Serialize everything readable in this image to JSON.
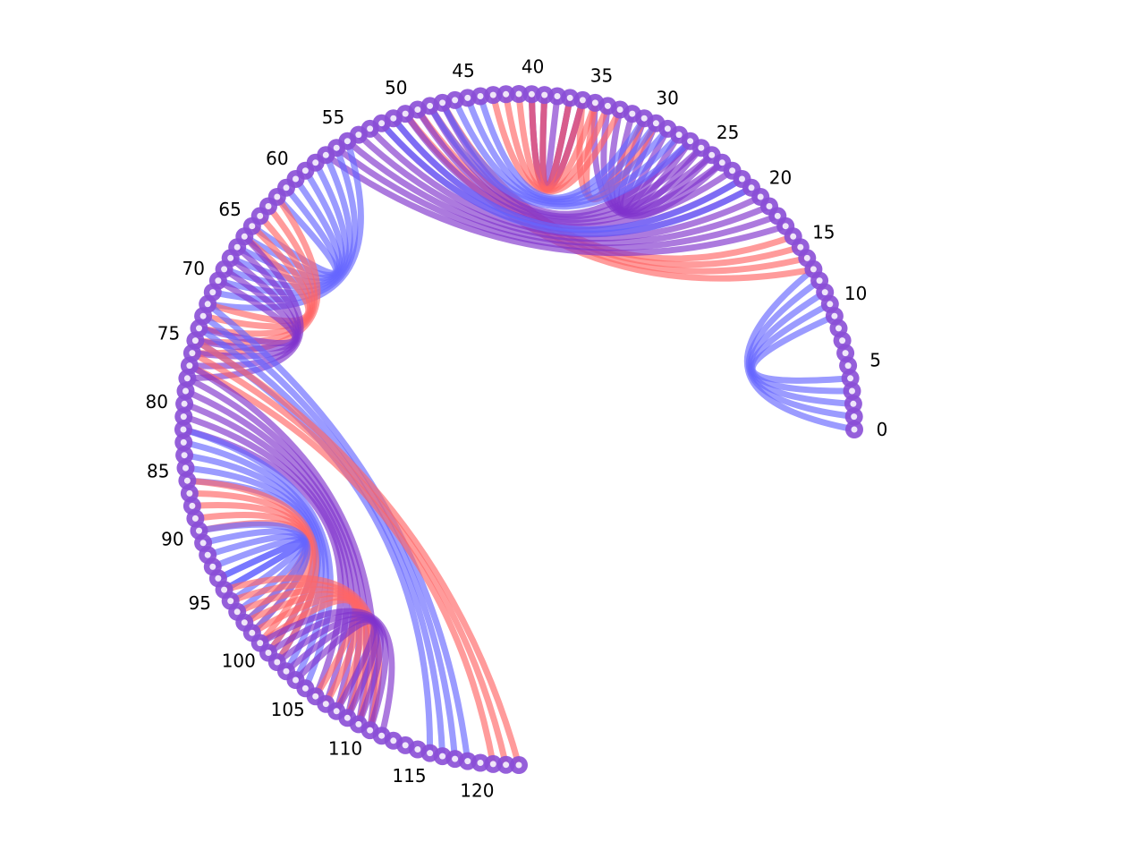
{
  "chart_data": {
    "type": "chord-arc",
    "title": "",
    "node_count": 124,
    "angular_span_degrees": 270,
    "tick_labels": [
      "0",
      "5",
      "10",
      "15",
      "20",
      "25",
      "30",
      "35",
      "40",
      "45",
      "50",
      "55",
      "60",
      "65",
      "70",
      "75",
      "80",
      "85",
      "90",
      "95",
      "100",
      "105",
      "110",
      "115",
      "120"
    ],
    "tick_label_step": 5,
    "colors": {
      "blue": "#6666ff",
      "red": "#ff6666",
      "purple": "#7f33cc",
      "node_ring": "#8a4ed6",
      "node_center": "#ffffff"
    },
    "links": [
      {
        "from": [
          0,
          4
        ],
        "to": [
          9,
          13
        ],
        "color": "blue"
      },
      {
        "from": [
          13,
          16
        ],
        "to": [
          47,
          50
        ],
        "color": "red"
      },
      {
        "from": [
          17,
          27
        ],
        "to": [
          47,
          57
        ],
        "color": "purple"
      },
      {
        "from": [
          21,
          22
        ],
        "to": [
          51,
          52
        ],
        "color": "blue"
      },
      {
        "from": [
          24,
          29
        ],
        "to": [
          30,
          35
        ],
        "color": "purple"
      },
      {
        "from": [
          30,
          31
        ],
        "to": [
          35,
          36
        ],
        "color": "red"
      },
      {
        "from": [
          36,
          40
        ],
        "to": [
          36,
          40
        ],
        "color": "purple"
      },
      {
        "from": [
          39,
          43
        ],
        "to": [
          33,
          37
        ],
        "color": "red"
      },
      {
        "from": [
          44,
          48
        ],
        "to": [
          27,
          31
        ],
        "color": "blue"
      },
      {
        "from": [
          55,
          62
        ],
        "to": [
          65,
          72
        ],
        "color": "blue"
      },
      {
        "from": [
          62,
          66
        ],
        "to": [
          72,
          76
        ],
        "color": "red"
      },
      {
        "from": [
          66,
          70
        ],
        "to": [
          74,
          78
        ],
        "color": "purple"
      },
      {
        "from": [
          72,
          75
        ],
        "to": [
          116,
          119
        ],
        "color": "blue"
      },
      {
        "from": [
          75,
          77
        ],
        "to": [
          121,
          123
        ],
        "color": "red"
      },
      {
        "from": [
          77,
          82
        ],
        "to": [
          106,
          111
        ],
        "color": "purple"
      },
      {
        "from": [
          82,
          86
        ],
        "to": [
          101,
          105
        ],
        "color": "blue"
      },
      {
        "from": [
          86,
          90
        ],
        "to": [
          98,
          102
        ],
        "color": "red"
      },
      {
        "from": [
          90,
          95
        ],
        "to": [
          94,
          99
        ],
        "color": "blue"
      },
      {
        "from": [
          95,
          100
        ],
        "to": [
          106,
          111
        ],
        "color": "red"
      },
      {
        "from": [
          100,
          104
        ],
        "to": [
          108,
          112
        ],
        "color": "purple"
      }
    ]
  }
}
